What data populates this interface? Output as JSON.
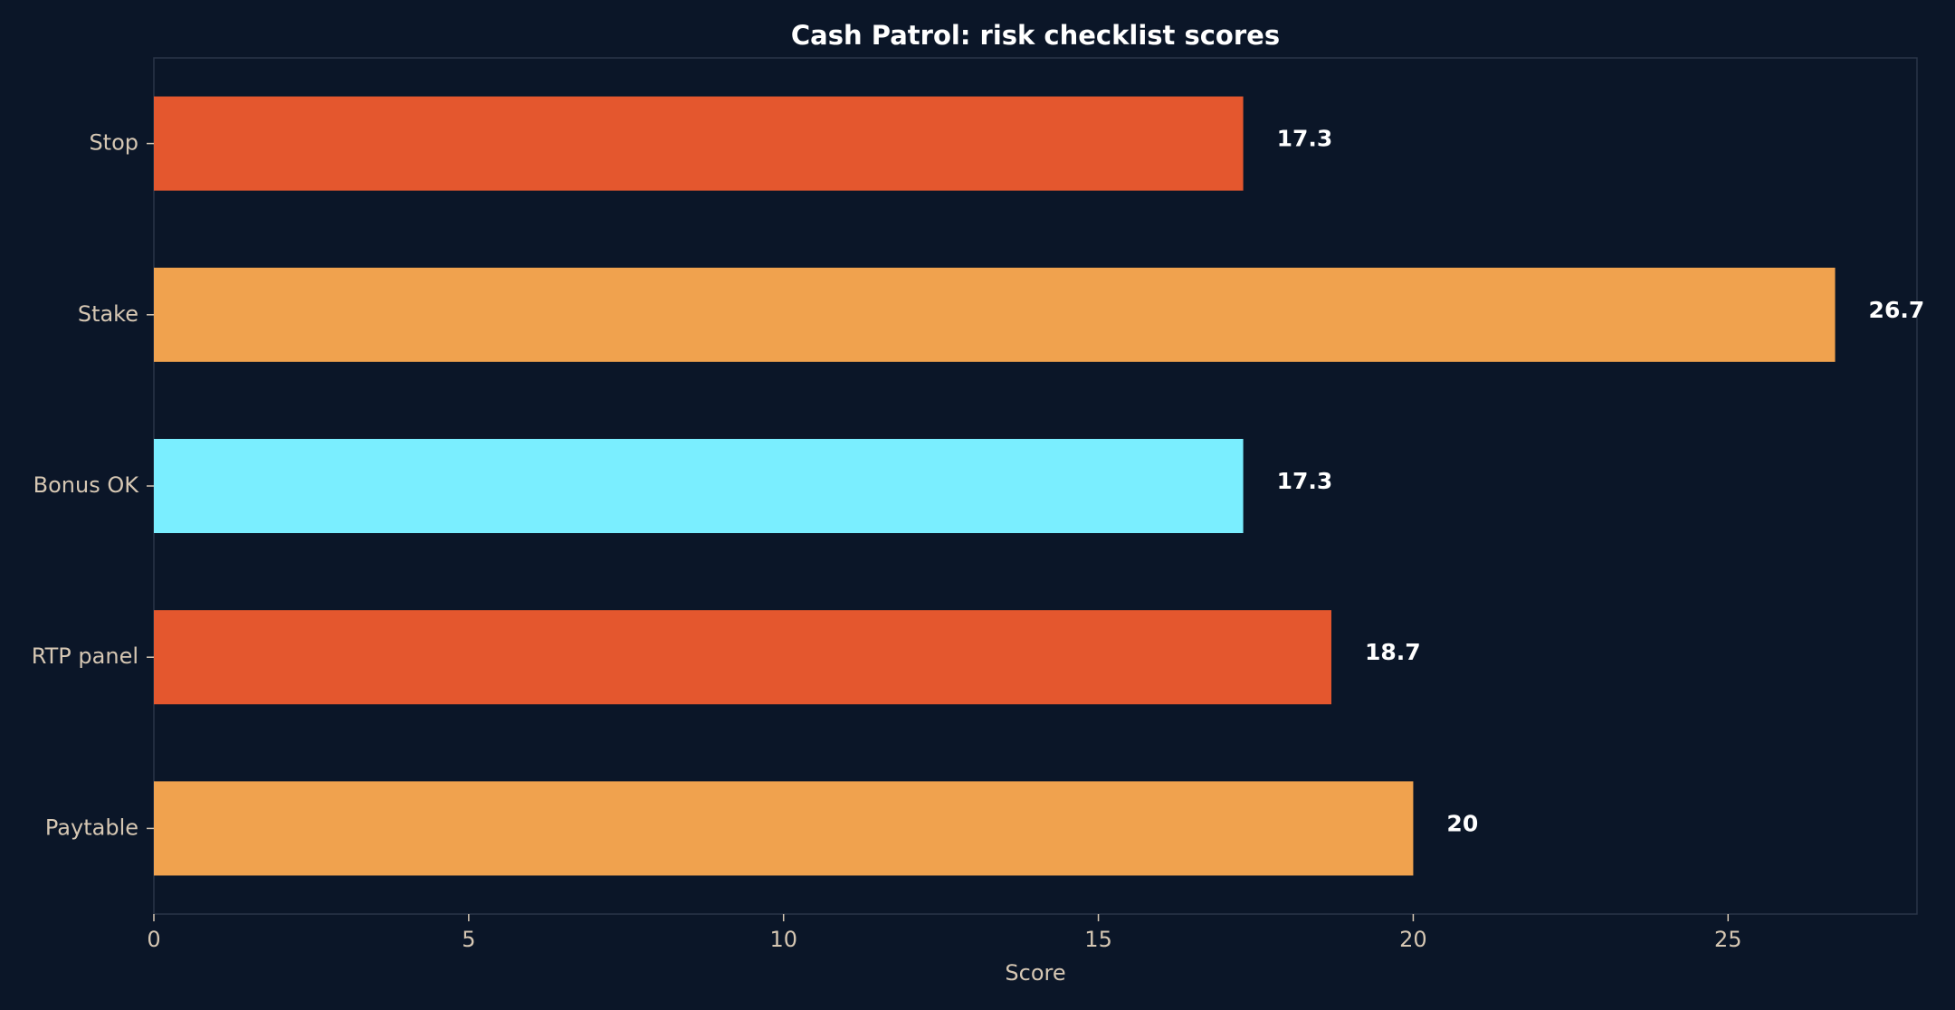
{
  "chart_data": {
    "type": "bar",
    "orientation": "horizontal",
    "title": "Cash Patrol: risk checklist scores",
    "xlabel": "Score",
    "ylabel": "",
    "categories": [
      "Stop",
      "Stake",
      "Bonus OK",
      "RTP panel",
      "Paytable"
    ],
    "values": [
      17.3,
      26.7,
      17.3,
      18.7,
      20
    ],
    "value_labels": [
      "17.3",
      "26.7",
      "17.3",
      "18.7",
      "20"
    ],
    "colors": [
      "#e4572e",
      "#f0a24e",
      "#7aeeff",
      "#e4572e",
      "#f0a24e"
    ],
    "xlim": [
      0,
      28
    ],
    "xticks": [
      0,
      5,
      10,
      15,
      20,
      25
    ],
    "grid": false,
    "legend": "none"
  },
  "theme": {
    "background": "#0b1628",
    "axes_frame": "#2a3549",
    "tick_color": "#d6c7b3",
    "title_color": "#ffffff"
  }
}
